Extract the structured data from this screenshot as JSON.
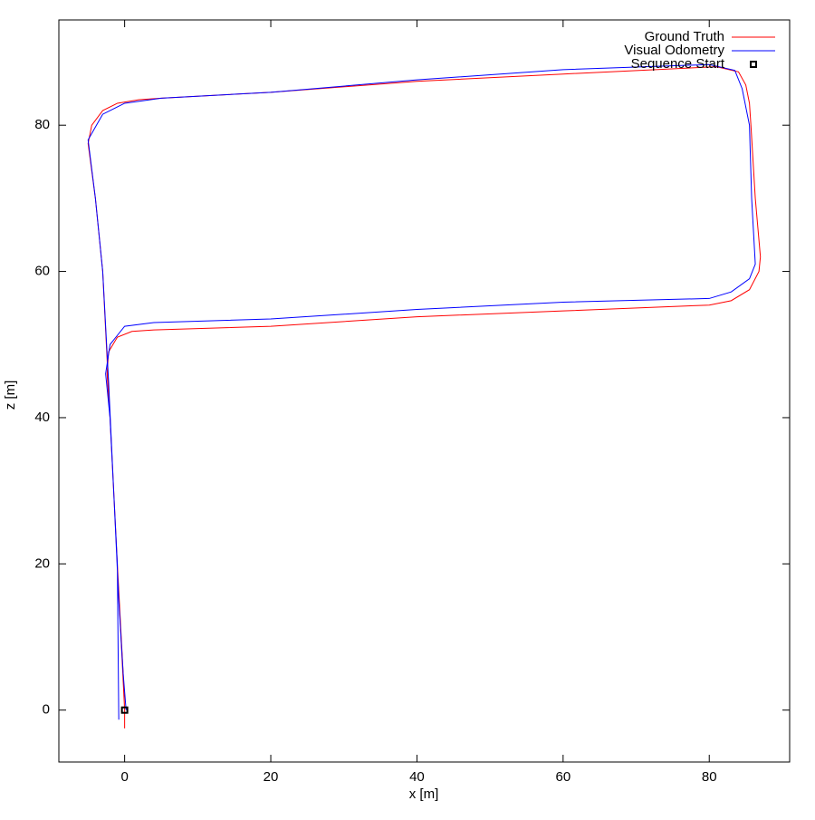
{
  "chart_data": {
    "type": "line",
    "xlabel": "x [m]",
    "ylabel": "z [m]",
    "xlim": [
      -9,
      91
    ],
    "ylim": [
      -7.1,
      94.4
    ],
    "xticks": [
      0,
      20,
      40,
      60,
      80
    ],
    "yticks": [
      0,
      20,
      40,
      60,
      80
    ],
    "grid": false,
    "legend": "top right",
    "series": [
      {
        "name": "Ground Truth",
        "color": "#ff0000",
        "kind": "line",
        "x": [
          0,
          0,
          -1,
          -2,
          -2.4,
          -2.2,
          -1,
          1,
          4,
          20,
          40,
          60,
          80,
          83,
          85.5,
          86.8,
          87,
          86.3,
          85.7,
          85.5,
          85,
          84,
          81,
          60,
          40,
          20,
          5,
          2,
          -1,
          -3,
          -4.5,
          -5,
          -4,
          -3,
          -2.5,
          -2,
          -1,
          -0.2,
          0
        ],
        "y": [
          -2.5,
          0,
          20,
          40,
          46,
          49,
          51,
          51.8,
          52,
          52.5,
          53.8,
          54.6,
          55.4,
          56,
          57.5,
          60,
          62,
          70,
          80,
          83,
          85.5,
          87.3,
          88,
          87,
          86,
          84.5,
          83.7,
          83.5,
          83,
          82,
          80,
          77.5,
          70,
          60,
          50,
          40,
          20,
          5,
          0
        ]
      },
      {
        "name": "Visual Odometry",
        "color": "#0000ff",
        "kind": "line",
        "x": [
          -0.8,
          -1,
          -2,
          -2.6,
          -2,
          0,
          4,
          20,
          40,
          60,
          80,
          83,
          85.5,
          86.3,
          85.8,
          85.5,
          84.5,
          83.5,
          80,
          60,
          40,
          20,
          5,
          0,
          -3,
          -5,
          -4,
          -3,
          -2.2,
          -1.5,
          -0.8,
          -0.2,
          0.2
        ],
        "y": [
          -1.3,
          20,
          40,
          46,
          50,
          52.5,
          53,
          53.5,
          54.8,
          55.8,
          56.3,
          57.2,
          59,
          61,
          70,
          80,
          85,
          87.5,
          88.3,
          87.6,
          86.2,
          84.5,
          83.7,
          83,
          81.5,
          78,
          70,
          60,
          45,
          30,
          15,
          5,
          0
        ]
      },
      {
        "name": "Sequence Start",
        "color": "#000000",
        "kind": "points",
        "marker": "square",
        "x": [
          0
        ],
        "y": [
          0
        ]
      }
    ]
  }
}
